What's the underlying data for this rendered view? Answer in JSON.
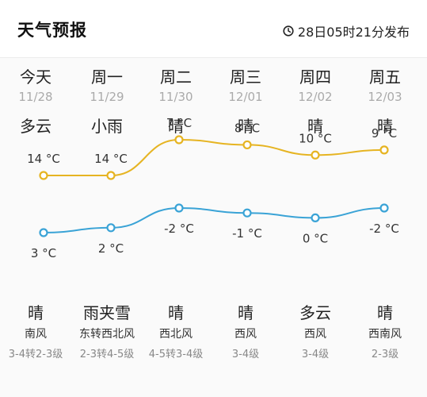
{
  "header": {
    "title": "天气预报",
    "publish_time": "28日05时21分发布"
  },
  "colors": {
    "high_line": "#e6b422",
    "low_line": "#3aa3d6",
    "date_text": "#aaaaaa"
  },
  "days": [
    {
      "name": "今天",
      "date": "11/28",
      "day_condition": "多云",
      "high": "14 °C",
      "low": "3 °C",
      "night_condition": "晴",
      "wind_dir": "南风",
      "wind_level": "3-4转2-3级"
    },
    {
      "name": "周一",
      "date": "11/29",
      "day_condition": "小雨",
      "high": "14 °C",
      "low": "2 °C",
      "night_condition": "雨夹雪",
      "wind_dir": "东转西北风",
      "wind_level": "2-3转4-5级"
    },
    {
      "name": "周二",
      "date": "11/30",
      "day_condition": "晴",
      "high": "7 °C",
      "low": "-2 °C",
      "night_condition": "晴",
      "wind_dir": "西北风",
      "wind_level": "4-5转3-4级"
    },
    {
      "name": "周三",
      "date": "12/01",
      "day_condition": "晴",
      "high": "8 °C",
      "low": "-1 °C",
      "night_condition": "晴",
      "wind_dir": "西风",
      "wind_level": "3-4级"
    },
    {
      "name": "周四",
      "date": "12/02",
      "day_condition": "晴",
      "high": "10 °C",
      "low": "0 °C",
      "night_condition": "多云",
      "wind_dir": "西风",
      "wind_level": "3-4级"
    },
    {
      "name": "周五",
      "date": "12/03",
      "day_condition": "晴",
      "high": "9 °C",
      "low": "-2 °C",
      "night_condition": "晴",
      "wind_dir": "西南风",
      "wind_level": "2-3级"
    }
  ],
  "chart_data": {
    "type": "line",
    "categories": [
      "今天",
      "周一",
      "周二",
      "周三",
      "周四",
      "周五"
    ],
    "series": [
      {
        "values": [
          14,
          14,
          7,
          8,
          10,
          9
        ]
      },
      {
        "values": [
          3,
          2,
          -2,
          -1,
          0,
          -2
        ]
      }
    ],
    "ylabel": "°C"
  }
}
